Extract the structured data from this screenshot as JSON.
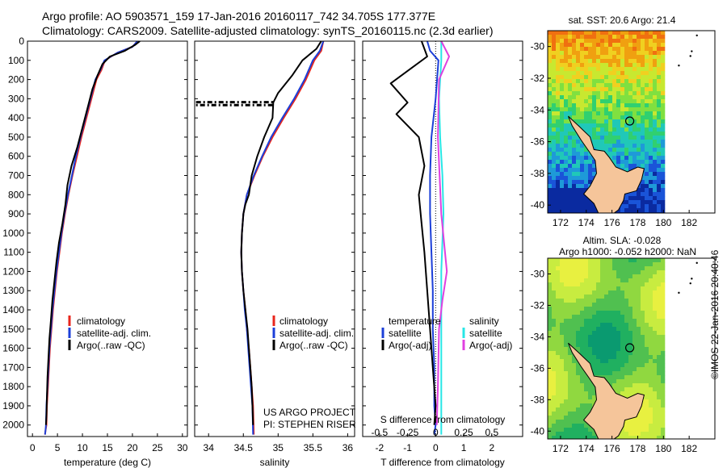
{
  "header": {
    "line1": "Argo profile: AO 5903571_159 17-Jan-2016 20160117_742 34.705S 177.377E",
    "line2": "Climatology: CARS2009. Satellite-adjusted climatology: synTS_20160115.nc (2.3d earlier)"
  },
  "credit": "©IMOS 22-Jan-2016 20:40:46",
  "project_text": [
    "US ARGO PROJECT",
    "PI: STEPHEN RISER"
  ],
  "colors": {
    "climatology": "#e8261c",
    "satellite": "#1c3fd8",
    "argo": "#000000",
    "satellite_s": "#28e6e6",
    "argo_s": "#e040e0",
    "land": "#f5c59a"
  },
  "chart_data": [
    {
      "type": "line",
      "id": "temperature",
      "xlabel": "temperature (deg C)",
      "xlim": [
        -1,
        31
      ],
      "xticks": [
        0,
        5,
        10,
        15,
        20,
        25,
        30
      ],
      "ylim": [
        0,
        2060
      ],
      "yticks": [
        0,
        100,
        200,
        300,
        400,
        500,
        600,
        700,
        800,
        900,
        1000,
        1100,
        1200,
        1300,
        1400,
        1500,
        1600,
        1700,
        1800,
        1900,
        2000
      ],
      "y_reversed": true,
      "legend": [
        "climatology",
        "satellite-adj. clim.",
        "Argo(..raw -QC)"
      ],
      "series": [
        {
          "name": "climatology",
          "color": "#e8261c",
          "x": [
            21.0,
            20.0,
            17.0,
            14.5,
            13.8,
            12.8,
            11.8,
            10.8,
            9.8,
            8.9,
            8.0,
            7.2,
            6.5,
            5.9,
            5.4,
            4.9,
            4.5,
            4.1,
            3.8,
            3.5,
            3.3,
            3.1,
            2.9,
            2.8,
            2.6,
            2.5
          ],
          "y": [
            0,
            30,
            60,
            100,
            150,
            200,
            300,
            400,
            500,
            600,
            700,
            800,
            900,
            1000,
            1100,
            1200,
            1300,
            1400,
            1500,
            1600,
            1700,
            1800,
            1900,
            2000,
            2030,
            2050
          ]
        },
        {
          "name": "satellite-adj. clim.",
          "color": "#1c3fd8",
          "x": [
            21.0,
            20.0,
            17.0,
            14.4,
            13.6,
            12.6,
            11.6,
            10.6,
            9.6,
            8.7,
            7.9,
            7.1,
            6.4,
            5.8,
            5.3,
            4.8,
            4.4,
            4.0,
            3.7,
            3.4,
            3.2,
            3.0,
            2.8,
            2.7,
            2.6,
            2.5
          ],
          "y": [
            0,
            30,
            60,
            100,
            150,
            200,
            300,
            400,
            500,
            600,
            700,
            800,
            900,
            1000,
            1100,
            1200,
            1300,
            1400,
            1500,
            1600,
            1700,
            1800,
            1900,
            2000,
            2030,
            2050
          ]
        },
        {
          "name": "Argo(..raw -QC)",
          "color": "#000000",
          "x": [
            21.5,
            20.5,
            18.5,
            15.5,
            14.0,
            13.0,
            12.0,
            11.0,
            10.0,
            9.0,
            7.8,
            7.0,
            6.6,
            6.0,
            5.3,
            4.8,
            4.4,
            4.0,
            3.7,
            3.4,
            3.2,
            3.0,
            2.9,
            2.8,
            2.7
          ],
          "y": [
            0,
            20,
            50,
            80,
            120,
            180,
            250,
            350,
            450,
            550,
            650,
            750,
            850,
            950,
            1050,
            1150,
            1250,
            1350,
            1450,
            1550,
            1650,
            1750,
            1850,
            1950,
            2000
          ]
        }
      ]
    },
    {
      "type": "line",
      "id": "salinity",
      "xlabel": "salinity",
      "xlim": [
        33.8,
        36.1
      ],
      "xticks": [
        34,
        34.5,
        35,
        35.5,
        36
      ],
      "xticklabels": [
        "34",
        "34.5",
        "35",
        "35.5",
        "36"
      ],
      "ylim": [
        0,
        2060
      ],
      "y_reversed": true,
      "legend": [
        "climatology",
        "satellite-adj. clim.",
        "Argo(..raw -QC)"
      ],
      "series": [
        {
          "name": "climatology",
          "color": "#e8261c",
          "x": [
            35.65,
            35.62,
            35.52,
            35.4,
            35.25,
            35.08,
            34.92,
            34.78,
            34.66,
            34.55,
            34.5,
            34.48,
            34.47,
            34.48,
            34.5,
            34.53,
            34.55,
            34.58,
            34.6,
            34.62,
            34.64,
            34.65
          ],
          "y": [
            0,
            50,
            100,
            200,
            300,
            400,
            500,
            600,
            700,
            800,
            900,
            1000,
            1100,
            1200,
            1300,
            1400,
            1500,
            1600,
            1700,
            1800,
            1900,
            2050
          ]
        },
        {
          "name": "satellite-adj. clim.",
          "color": "#1c3fd8",
          "x": [
            35.65,
            35.6,
            35.5,
            35.38,
            35.23,
            35.06,
            34.9,
            34.77,
            34.65,
            34.55,
            34.5,
            34.48,
            34.47,
            34.48,
            34.5,
            34.52,
            34.55,
            34.57,
            34.59,
            34.61,
            34.63,
            34.64
          ],
          "y": [
            0,
            50,
            100,
            200,
            300,
            400,
            500,
            600,
            700,
            800,
            900,
            1000,
            1100,
            1200,
            1300,
            1400,
            1500,
            1600,
            1700,
            1800,
            1900,
            2050
          ]
        },
        {
          "name": "Argo(..raw -QC)",
          "color": "#000000",
          "x": [
            35.62,
            35.55,
            35.35,
            35.2,
            35.0,
            34.93,
            34.92,
            34.8,
            34.7,
            34.62,
            34.58,
            34.53,
            34.5,
            34.48,
            34.47,
            34.48,
            34.5,
            34.53,
            34.56,
            34.58,
            34.6,
            34.62,
            34.63,
            34.64
          ],
          "y": [
            0,
            40,
            100,
            180,
            270,
            320,
            400,
            500,
            600,
            700,
            800,
            850,
            900,
            1000,
            1100,
            1200,
            1300,
            1400,
            1500,
            1600,
            1700,
            1800,
            1900,
            2000
          ]
        },
        {
          "name": "Argo spike",
          "color": "#000000",
          "dashed": true,
          "x": [
            33.82,
            34.92,
            34.92,
            33.82
          ],
          "y": [
            318,
            318,
            333,
            333
          ]
        }
      ]
    },
    {
      "type": "line",
      "id": "difference",
      "xlabel": "T difference from climatology",
      "xlabel_top": "S difference from climatology",
      "xlim": [
        -2.6,
        3.1
      ],
      "xticks": [
        -2,
        -1,
        0,
        1,
        2
      ],
      "xticks_s": [
        -0.5,
        -0.25,
        0,
        0.25,
        0.5
      ],
      "xticks_s_labels": [
        "-0.5",
        "-0.25",
        "0",
        "0.25",
        "0.5"
      ],
      "ylim": [
        0,
        2060
      ],
      "y_reversed": true,
      "legend_t_title": "temperature",
      "legend_s_title": "salinity",
      "legend_t": [
        "satellite",
        "Argo(-adj)"
      ],
      "legend_s": [
        "satellite",
        "Argo(-adj)"
      ],
      "series": [
        {
          "name": "satellite",
          "color": "#1c3fd8",
          "x": [
            -0.3,
            -0.2,
            0.1,
            0.0,
            -0.15,
            -0.2,
            -0.2,
            -0.15,
            -0.1,
            -0.1,
            -0.05,
            -0.05,
            0.0,
            -0.05
          ],
          "y": [
            0,
            50,
            100,
            300,
            500,
            700,
            900,
            1100,
            1300,
            1500,
            1700,
            1900,
            2000,
            2050
          ]
        },
        {
          "name": "Argo(-adj)",
          "color": "#000000",
          "x": [
            -0.5,
            -0.3,
            -1.6,
            -1.0,
            -1.4,
            -0.6,
            -0.4,
            -0.6,
            -0.5,
            -0.4,
            -0.3,
            -0.2,
            -0.1,
            0.0,
            -0.05
          ],
          "y": [
            0,
            80,
            220,
            320,
            380,
            500,
            650,
            800,
            950,
            1100,
            1300,
            1500,
            1700,
            1900,
            2000
          ]
        },
        {
          "name": "satellite S",
          "color": "#28e6e6",
          "x": [
            0.05,
            0.05,
            0.03,
            0.04,
            0.06,
            0.07,
            0.05,
            0.05
          ],
          "y": [
            0,
            100,
            300,
            500,
            700,
            900,
            1200,
            2050
          ]
        },
        {
          "name": "Argo(-adj) S",
          "color": "#e040e0",
          "x": [
            0.05,
            0.12,
            0.03,
            0.02,
            0.05,
            0.1,
            0.06,
            0.03,
            0.02,
            0.01
          ],
          "y": [
            0,
            80,
            200,
            500,
            900,
            1200,
            1350,
            1500,
            1800,
            2000
          ]
        }
      ]
    },
    {
      "type": "heatmap",
      "id": "sst-map",
      "title": "sat. SST: 20.6 Argo: 21.4",
      "xlim": [
        171,
        184
      ],
      "ylim": [
        -40.5,
        -29
      ],
      "xticks": [
        172,
        174,
        176,
        178,
        180,
        182
      ],
      "yticks": [
        -30,
        -32,
        -34,
        -36,
        -38,
        -40
      ],
      "argo_position": [
        177.38,
        -34.7
      ]
    },
    {
      "type": "heatmap",
      "id": "sla-map",
      "title": "Altim. SLA: -0.028",
      "subtitle": "Argo h1000: -0.052 h2000: NaN",
      "xlim": [
        171,
        184
      ],
      "ylim": [
        -40.5,
        -29
      ],
      "xticks": [
        172,
        174,
        176,
        178,
        180,
        182
      ],
      "yticks": [
        -30,
        -32,
        -34,
        -36,
        -38,
        -40
      ],
      "argo_position": [
        177.38,
        -34.7
      ]
    }
  ]
}
